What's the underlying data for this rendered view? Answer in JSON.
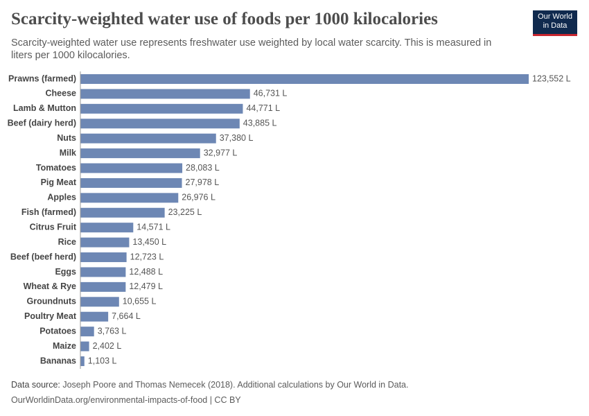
{
  "chart_data": {
    "type": "bar",
    "orientation": "horizontal",
    "title": "Scarcity-weighted water use of foods per 1000 kilocalories",
    "subtitle": "Scarcity-weighted water use represents freshwater use weighted by local water scarcity. This is measured in liters per 1000 kilocalories.",
    "logo": [
      "Our World",
      "in Data"
    ],
    "categories": [
      "Prawns (farmed)",
      "Cheese",
      "Lamb & Mutton",
      "Beef (dairy herd)",
      "Nuts",
      "Milk",
      "Tomatoes",
      "Pig Meat",
      "Apples",
      "Fish (farmed)",
      "Citrus Fruit",
      "Rice",
      "Beef (beef herd)",
      "Eggs",
      "Wheat & Rye",
      "Groundnuts",
      "Poultry Meat",
      "Potatoes",
      "Maize",
      "Bananas"
    ],
    "values": [
      123552,
      46731,
      44771,
      43885,
      37380,
      32977,
      28083,
      27978,
      26976,
      23225,
      14571,
      13450,
      12723,
      12488,
      12479,
      10655,
      7664,
      3763,
      2402,
      1103
    ],
    "value_labels": [
      "123,552 L",
      "46,731 L",
      "44,771 L",
      "43,885 L",
      "37,380 L",
      "32,977 L",
      "28,083 L",
      "27,978 L",
      "26,976 L",
      "23,225 L",
      "14,571 L",
      "13,450 L",
      "12,723 L",
      "12,488 L",
      "12,479 L",
      "10,655 L",
      "7,664 L",
      "3,763 L",
      "2,402 L",
      "1,103 L"
    ],
    "color": "#6d87b4",
    "source_label": "Data source:",
    "source": "Joseph Poore and Thomas Nemecek (2018). Additional calculations by Our World in Data.",
    "url": "OurWorldinData.org/environmental-impacts-of-food | CC BY"
  }
}
